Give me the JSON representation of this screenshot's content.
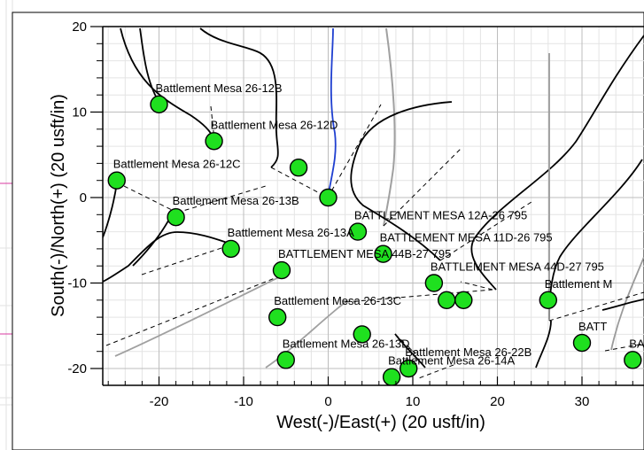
{
  "chart_data": {
    "type": "scatter",
    "title": "",
    "xlabel": "West(-)/East(+) (20 usft/in)",
    "ylabel": "South(-)/North(+) (20 usft/in)",
    "xlim": [
      -26,
      36
    ],
    "ylim": [
      -21,
      21
    ],
    "x_ticks": [
      -20,
      -10,
      0,
      10,
      20,
      30
    ],
    "x_tick_labels": [
      "-20",
      "-10",
      "0",
      "10",
      "20",
      "30"
    ],
    "y_ticks": [
      20,
      10,
      0,
      -10,
      -20
    ],
    "y_tick_labels": [
      "20",
      "10",
      "0",
      "-10",
      "-20"
    ],
    "grid": true,
    "marker_color": "#1fe01f",
    "selected_well_color": "#1f3fd0",
    "wells": [
      {
        "label": "Battlement Mesa 26-12B",
        "x": -20.0,
        "y": 10.9
      },
      {
        "label": "Battlement Mesa 26-12D",
        "x": -13.5,
        "y": 6.6
      },
      {
        "label": "Battlement Mesa 26-12C",
        "x": -25.0,
        "y": 2.0
      },
      {
        "label": "Battlement Mesa 26-13B",
        "x": -18.0,
        "y": -2.3
      },
      {
        "label": "Battlement Mesa 26-13A",
        "x": -11.5,
        "y": -6.0
      },
      {
        "label": "Battlement Mesa 26-13C",
        "x": -6.0,
        "y": -14.0
      },
      {
        "label": "BATTLEMENT MESA 44B-27 795",
        "x": -5.5,
        "y": -8.5
      },
      {
        "label": "Battlement Mesa 26-13D",
        "x": -5.0,
        "y": -19.0
      },
      {
        "label": "Battlement Mesa 26-14A",
        "x": 7.5,
        "y": -21.0
      },
      {
        "label": "",
        "x": -3.5,
        "y": 3.5
      },
      {
        "label": "",
        "x": 0.0,
        "y": 0.0
      },
      {
        "label": "BATTLEMENT MESA 12A-26 795",
        "x": 3.5,
        "y": -4.0
      },
      {
        "label": "BATTLEMENT MESA 11D-26 795",
        "x": 6.5,
        "y": -6.6
      },
      {
        "label": "Battlement Mesa 26-22B",
        "x": 9.5,
        "y": -20.0
      },
      {
        "label": "BATTLEMENT MESA 44D-27 795",
        "x": 12.5,
        "y": -10.0
      },
      {
        "label": "",
        "x": 14.0,
        "y": -12.0
      },
      {
        "label": "",
        "x": 4.0,
        "y": -16.0
      },
      {
        "label": "",
        "x": 16.0,
        "y": -12.0
      },
      {
        "label": "Battlement M",
        "x": 26.0,
        "y": -12.0
      },
      {
        "label": "BATT",
        "x": 30.0,
        "y": -17.0
      },
      {
        "label": "BAT",
        "x": 36.0,
        "y": -19.0
      }
    ]
  }
}
